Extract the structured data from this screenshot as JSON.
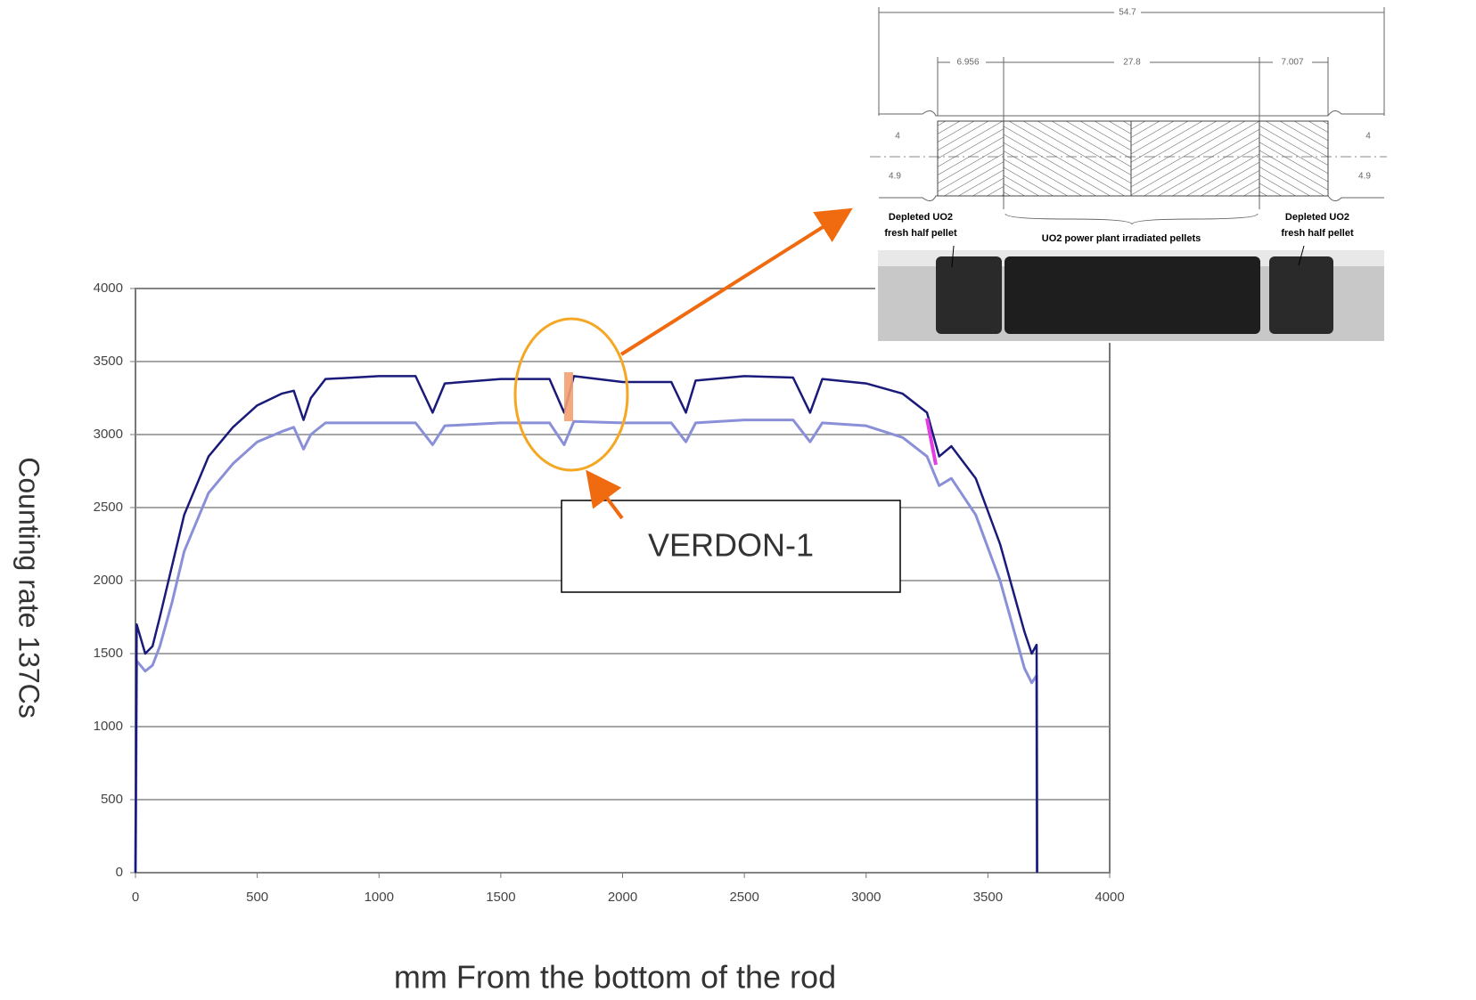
{
  "chart_data": {
    "type": "line",
    "x_label": "mm From the bottom of the rod",
    "y_label": "Counting rate 137Cs",
    "annotation": "VERDON-1",
    "x": [
      0,
      5,
      40,
      70,
      100,
      150,
      200,
      300,
      400,
      500,
      600,
      650,
      690,
      720,
      780,
      1000,
      1150,
      1220,
      1270,
      1500,
      1700,
      1760,
      1800,
      2000,
      2200,
      2260,
      2300,
      2500,
      2700,
      2770,
      2820,
      3000,
      3150,
      3250,
      3300,
      3350,
      3450,
      3550,
      3650,
      3680,
      3700,
      3702
    ],
    "series": [
      {
        "color": "#8a90d8",
        "values": [
          0,
          1450,
          1380,
          1420,
          1550,
          1850,
          2200,
          2600,
          2800,
          2950,
          3020,
          3050,
          2900,
          3000,
          3080,
          3080,
          3080,
          2930,
          3060,
          3080,
          3080,
          2930,
          3090,
          3080,
          3080,
          2950,
          3080,
          3100,
          3100,
          2950,
          3080,
          3060,
          2980,
          2850,
          2650,
          2700,
          2450,
          2000,
          1400,
          1300,
          1350,
          0
        ]
      },
      {
        "color": "#1a1a7a",
        "values": [
          0,
          1700,
          1500,
          1550,
          1750,
          2100,
          2450,
          2850,
          3050,
          3200,
          3280,
          3300,
          3100,
          3250,
          3380,
          3400,
          3400,
          3150,
          3350,
          3380,
          3380,
          3150,
          3400,
          3360,
          3360,
          3150,
          3370,
          3400,
          3390,
          3150,
          3380,
          3350,
          3280,
          3150,
          2850,
          2920,
          2700,
          2250,
          1650,
          1500,
          1560,
          0
        ]
      }
    ],
    "xlim": [
      0,
      4000
    ],
    "ylim": [
      0,
      4000
    ],
    "xticks": [
      0,
      500,
      1000,
      1500,
      2000,
      2500,
      3000,
      3500,
      4000
    ],
    "yticks": [
      0,
      500,
      1000,
      1500,
      2000,
      2500,
      3000,
      3500,
      4000
    ],
    "grid": true
  },
  "inset": {
    "total": "54.7",
    "left_part": "6.956",
    "middle_part": "27.8",
    "right_part": "7.007",
    "left_inner": "4",
    "left_outer": "4.9",
    "right_inner": "4",
    "right_outer": "4.9",
    "left_label": [
      "Depleted UO2",
      "fresh half pellet"
    ],
    "right_label": [
      "Depleted UO2",
      "fresh half pellet"
    ],
    "middle_label": "UO2 power plant irradiated pellets"
  }
}
